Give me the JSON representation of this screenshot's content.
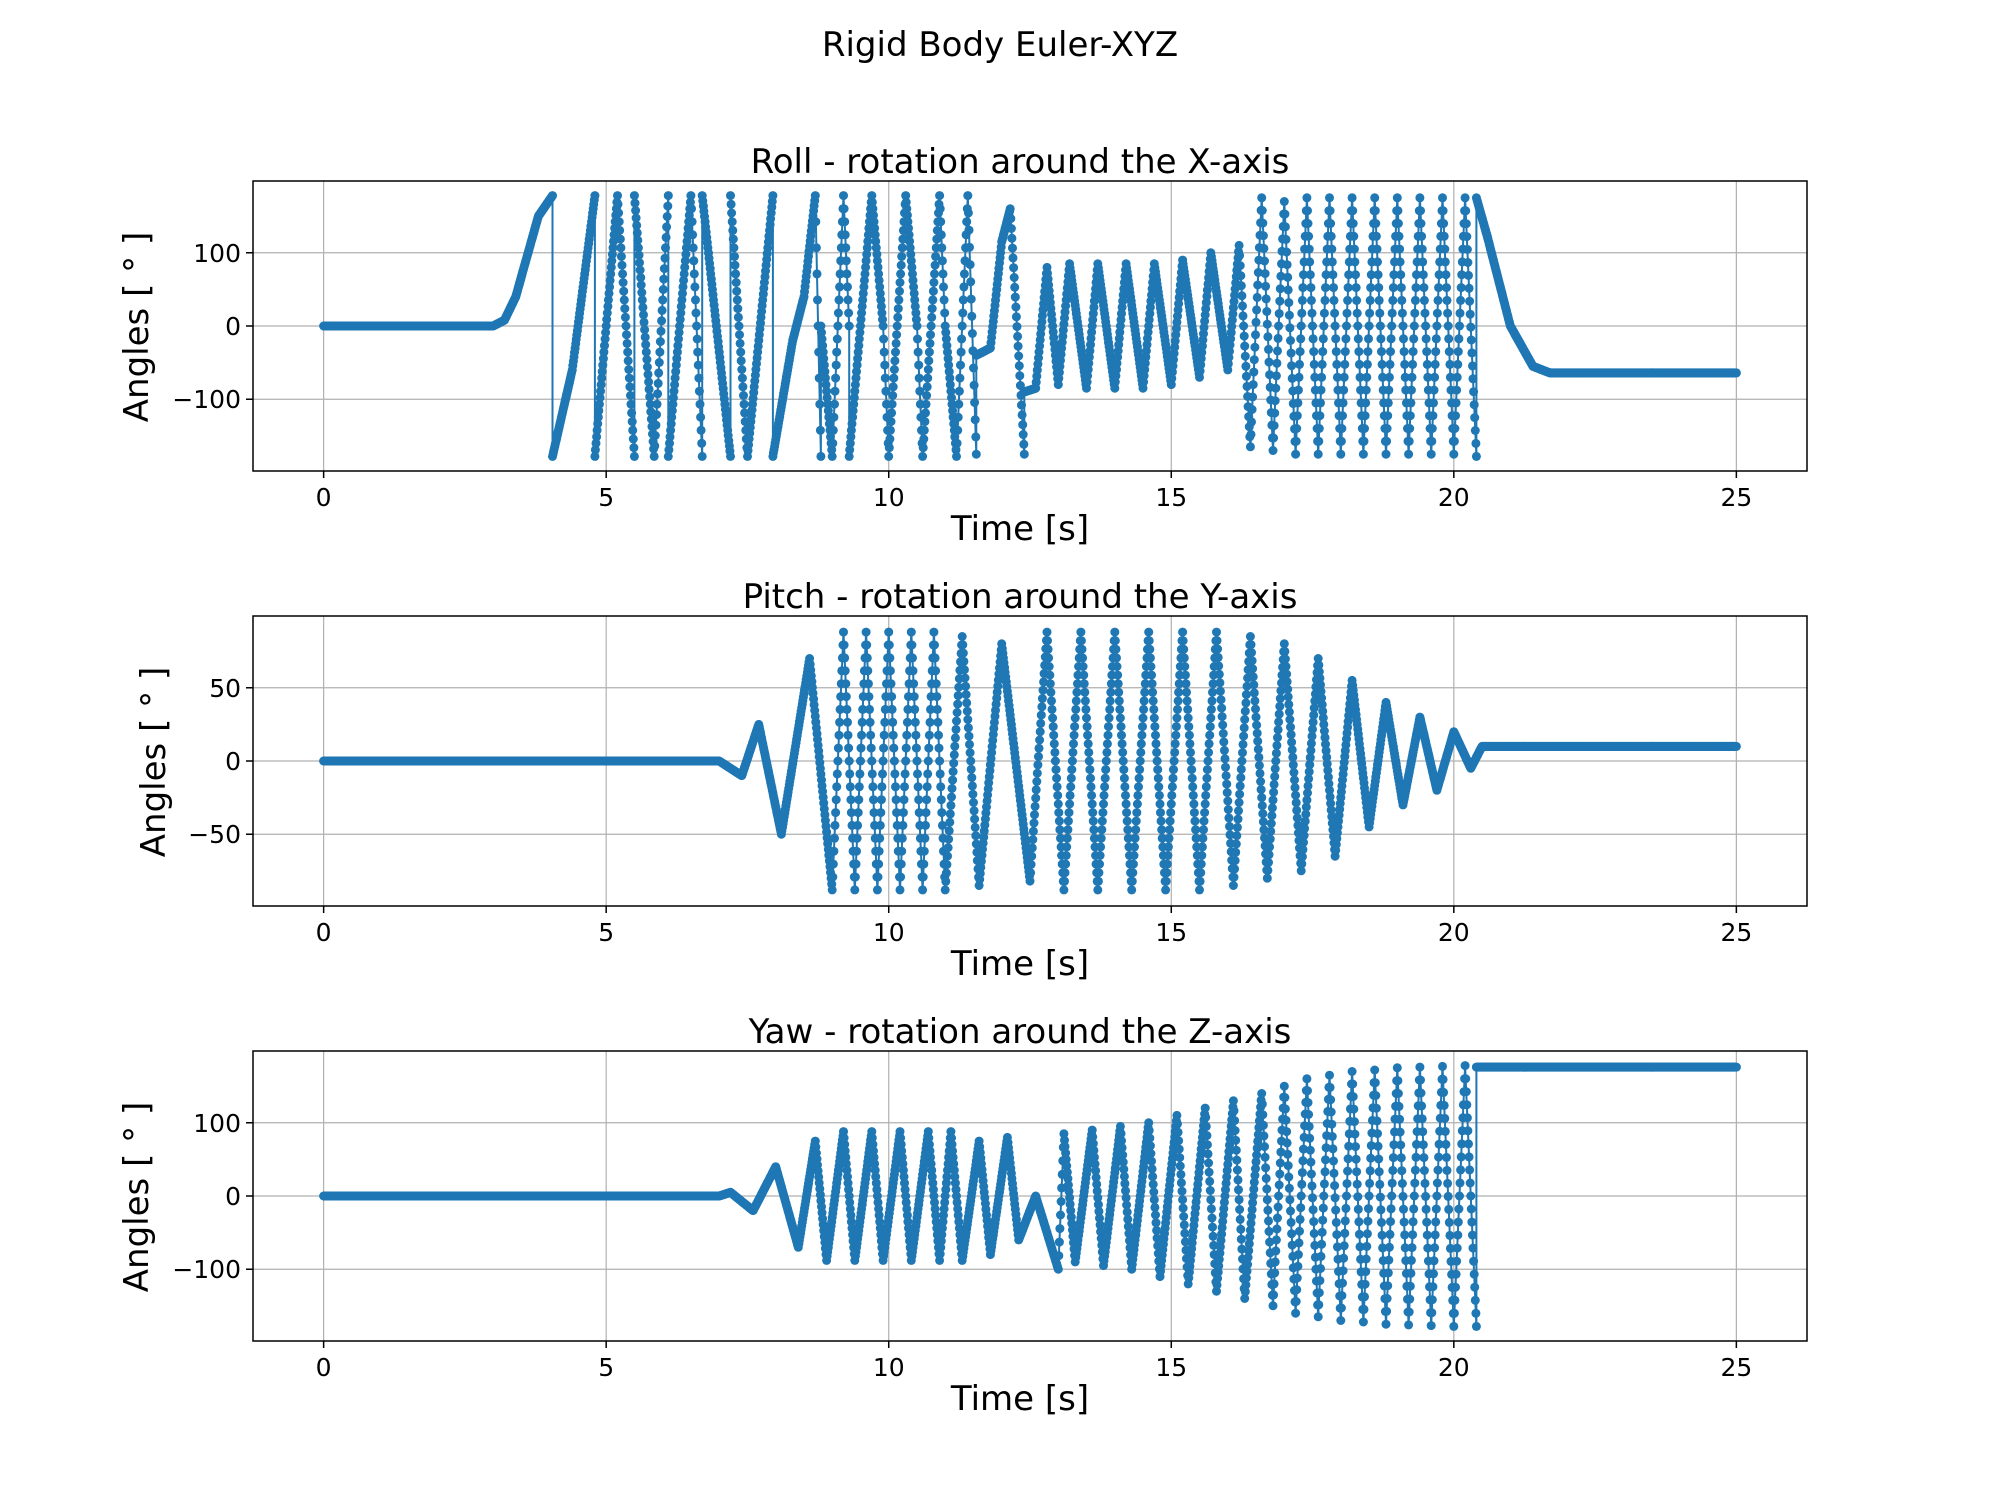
{
  "figure": {
    "title": "Rigid Body Euler-XYZ",
    "colors": {
      "series": "#1f77b4",
      "grid": "#b0b0b0",
      "axes": "#000000",
      "background": "#ffffff"
    }
  },
  "chart_data": [
    {
      "type": "line",
      "markers": true,
      "title": "Roll - rotation around the X-axis",
      "xlabel": "Time [s]",
      "ylabel": "Angles [ ° ]",
      "xlim": [
        -1.25,
        26.25
      ],
      "ylim": [
        -198,
        198
      ],
      "xticks": [
        0,
        5,
        10,
        15,
        20,
        25
      ],
      "yticks": [
        -100,
        0,
        100
      ],
      "xtick_labels": [
        "0",
        "5",
        "10",
        "15",
        "20",
        "25"
      ],
      "ytick_labels": [
        "−100",
        "0",
        "100"
      ],
      "grid": true,
      "series": [
        {
          "color": "#1f77b4",
          "x": [
            0,
            3.0,
            3.2,
            3.4,
            3.6,
            3.8,
            4.05,
            4.05,
            4.4,
            4.8,
            4.8,
            5.2,
            5.5,
            5.5,
            5.85,
            6.1,
            6.1,
            6.5,
            6.7,
            6.7,
            7.2,
            7.2,
            7.5,
            7.95,
            7.95,
            8.3,
            8.5,
            8.7,
            8.8,
            8.8,
            9.0,
            9.2,
            9.3,
            9.3,
            9.7,
            9.9,
            10.0,
            10.3,
            10.5,
            10.6,
            10.9,
            11.0,
            11.2,
            11.4,
            11.55,
            11.55,
            11.8,
            12.0,
            12.15,
            12.4,
            12.4,
            12.6,
            12.8,
            13.0,
            13.2,
            13.5,
            13.7,
            14.0,
            14.2,
            14.5,
            14.7,
            15.0,
            15.2,
            15.5,
            15.7,
            16.0,
            16.2,
            16.4,
            16.6,
            16.8,
            17.0,
            17.2,
            17.4,
            17.6,
            17.8,
            18.0,
            18.2,
            18.4,
            18.6,
            18.8,
            19.0,
            19.2,
            19.4,
            19.6,
            19.8,
            20.0,
            20.2,
            20.4,
            20.4,
            20.6,
            21.0,
            21.4,
            21.7,
            22.5,
            25.0
          ],
          "y": [
            0,
            0,
            8,
            40,
            95,
            150,
            178,
            -178,
            -60,
            178,
            -178,
            178,
            -178,
            178,
            -178,
            178,
            -178,
            178,
            -178,
            178,
            -178,
            178,
            -178,
            178,
            -178,
            -20,
            40,
            178,
            -178,
            0,
            -178,
            178,
            0,
            -178,
            178,
            0,
            -178,
            178,
            0,
            -178,
            178,
            0,
            -178,
            178,
            -175,
            -40,
            -30,
            115,
            160,
            -175,
            -90,
            -85,
            80,
            -80,
            85,
            -85,
            85,
            -85,
            85,
            -85,
            85,
            -80,
            90,
            -70,
            100,
            -60,
            110,
            -165,
            175,
            -170,
            170,
            -175,
            175,
            -175,
            175,
            -175,
            175,
            -175,
            175,
            -175,
            175,
            -175,
            175,
            -175,
            175,
            -175,
            175,
            -178,
            175,
            120,
            0,
            -55,
            -64,
            -64,
            -64
          ]
        }
      ]
    },
    {
      "type": "line",
      "markers": true,
      "title": "Pitch - rotation around the Y-axis",
      "xlabel": "Time [s]",
      "ylabel": "Angles [ ° ]",
      "xlim": [
        -1.25,
        26.25
      ],
      "ylim": [
        -99,
        99
      ],
      "xticks": [
        0,
        5,
        10,
        15,
        20,
        25
      ],
      "yticks": [
        -50,
        0,
        50
      ],
      "xtick_labels": [
        "0",
        "5",
        "10",
        "15",
        "20",
        "25"
      ],
      "ytick_labels": [
        "−50",
        "0",
        "50"
      ],
      "grid": true,
      "series": [
        {
          "color": "#1f77b4",
          "x": [
            0,
            7.0,
            7.2,
            7.4,
            7.7,
            8.1,
            8.6,
            9.0,
            9.2,
            9.4,
            9.6,
            9.8,
            10.0,
            10.2,
            10.4,
            10.6,
            10.8,
            11.0,
            11.3,
            11.6,
            12.0,
            12.5,
            12.8,
            13.1,
            13.4,
            13.7,
            14.0,
            14.3,
            14.6,
            14.9,
            15.2,
            15.5,
            15.8,
            16.1,
            16.4,
            16.7,
            17.0,
            17.3,
            17.6,
            17.9,
            18.2,
            18.5,
            18.8,
            19.1,
            19.4,
            19.7,
            20.0,
            20.3,
            20.5,
            22.0,
            25.0
          ],
          "y": [
            0,
            0,
            -5,
            -10,
            25,
            -50,
            70,
            -88,
            88,
            -88,
            88,
            -88,
            88,
            -88,
            88,
            -88,
            88,
            -88,
            85,
            -85,
            80,
            -82,
            88,
            -88,
            88,
            -88,
            88,
            -88,
            88,
            -88,
            88,
            -88,
            88,
            -85,
            85,
            -80,
            80,
            -75,
            70,
            -65,
            55,
            -45,
            40,
            -30,
            30,
            -20,
            20,
            -5,
            10,
            10,
            10
          ]
        }
      ]
    },
    {
      "type": "line",
      "markers": true,
      "title": "Yaw - rotation around the Z-axis",
      "xlabel": "Time [s]",
      "ylabel": "Angles [ ° ]",
      "xlim": [
        -1.25,
        26.25
      ],
      "ylim": [
        -198,
        198
      ],
      "xticks": [
        0,
        5,
        10,
        15,
        20,
        25
      ],
      "yticks": [
        -100,
        0,
        100
      ],
      "xtick_labels": [
        "0",
        "5",
        "10",
        "15",
        "20",
        "25"
      ],
      "ytick_labels": [
        "−100",
        "0",
        "100"
      ],
      "grid": true,
      "series": [
        {
          "color": "#1f77b4",
          "x": [
            0,
            7.0,
            7.2,
            7.6,
            8.0,
            8.4,
            8.7,
            8.9,
            9.2,
            9.4,
            9.7,
            9.9,
            10.2,
            10.4,
            10.7,
            10.9,
            11.1,
            11.3,
            11.6,
            11.8,
            12.1,
            12.3,
            12.6,
            13.0,
            13.1,
            13.3,
            13.6,
            13.8,
            14.1,
            14.3,
            14.6,
            14.8,
            15.1,
            15.3,
            15.6,
            15.8,
            16.1,
            16.3,
            16.6,
            16.8,
            17.0,
            17.2,
            17.4,
            17.6,
            17.8,
            18.0,
            18.2,
            18.4,
            18.6,
            18.8,
            19.0,
            19.2,
            19.4,
            19.6,
            19.8,
            20.0,
            20.2,
            20.4,
            20.4,
            22.0,
            25.0
          ],
          "y": [
            0,
            0,
            5,
            -20,
            40,
            -70,
            75,
            -88,
            88,
            -88,
            88,
            -88,
            88,
            -88,
            88,
            -88,
            88,
            -88,
            75,
            -80,
            80,
            -60,
            0,
            -100,
            85,
            -90,
            90,
            -95,
            95,
            -100,
            100,
            -110,
            110,
            -120,
            120,
            -130,
            130,
            -140,
            140,
            -150,
            150,
            -160,
            160,
            -165,
            165,
            -170,
            170,
            -172,
            172,
            -175,
            175,
            -176,
            176,
            -177,
            177,
            -178,
            178,
            -178,
            176,
            176,
            176
          ]
        }
      ]
    }
  ]
}
